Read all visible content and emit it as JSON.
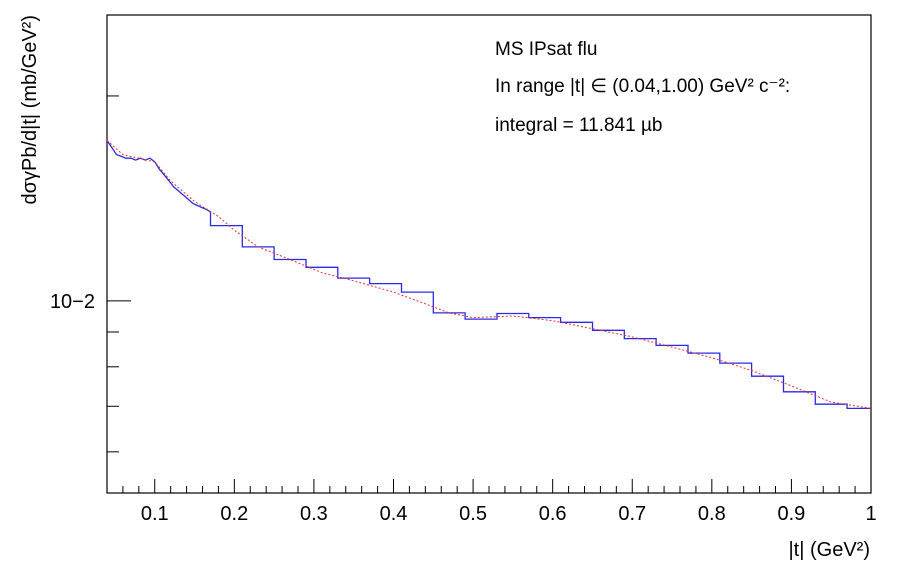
{
  "chart_data": {
    "type": "line",
    "title": "",
    "annotations": [
      "MS IPsat flu",
      "In range |t| ∈ (0.04,1.00) GeV² c⁻²:",
      "integral = 11.841 µb"
    ],
    "xlabel": "|t| (GeV²)",
    "ylabel": "dσγPb/d|t| (mb/GeV²)",
    "xlim": [
      0.04,
      1.0
    ],
    "ylim": [
      0.00522,
      0.0263
    ],
    "y_scale": "log",
    "x_tick_labels": [
      "0.1",
      "0.2",
      "0.3",
      "0.4",
      "0.5",
      "0.6",
      "0.7",
      "0.8",
      "0.9",
      "1"
    ],
    "y_tick_label": "10−2",
    "series": [
      {
        "style": "step-histogram",
        "color": "#2a2ae6",
        "fine_x": [
          0.04,
          0.046,
          0.052,
          0.058,
          0.064,
          0.07,
          0.076,
          0.082,
          0.088,
          0.094,
          0.1,
          0.106,
          0.112,
          0.118,
          0.124,
          0.13,
          0.136,
          0.142,
          0.148,
          0.154,
          0.16,
          0.166,
          0.17
        ],
        "fine_y": [
          0.0172,
          0.0168,
          0.0164,
          0.0163,
          0.0162,
          0.0162,
          0.0161,
          0.0162,
          0.0161,
          0.0162,
          0.016,
          0.0156,
          0.0153,
          0.015,
          0.0147,
          0.0145,
          0.0143,
          0.0141,
          0.0139,
          0.0138,
          0.0137,
          0.0136,
          0.0135
        ],
        "bin_edges": [
          0.17,
          0.21,
          0.25,
          0.29,
          0.33,
          0.37,
          0.41,
          0.45,
          0.49,
          0.53,
          0.57,
          0.61,
          0.65,
          0.69,
          0.73,
          0.77,
          0.81,
          0.85,
          0.89,
          0.93,
          0.97,
          1.0
        ],
        "bin_values": [
          0.0129,
          0.012,
          0.0115,
          0.0112,
          0.0108,
          0.0106,
          0.0103,
          0.0096,
          0.0094,
          0.00958,
          0.00945,
          0.0093,
          0.00905,
          0.0088,
          0.0086,
          0.00838,
          0.0081,
          0.00775,
          0.00735,
          0.00705,
          0.00695
        ]
      },
      {
        "style": "dotted-curve",
        "color": "#e8302a",
        "x": [
          0.04,
          0.06,
          0.08,
          0.1,
          0.12,
          0.15,
          0.18,
          0.2,
          0.23,
          0.27,
          0.31,
          0.35,
          0.4,
          0.44,
          0.47,
          0.5,
          0.55,
          0.6,
          0.65,
          0.7,
          0.75,
          0.8,
          0.85,
          0.9,
          0.95,
          1.0
        ],
        "y": [
          0.0172,
          0.0164,
          0.0162,
          0.016,
          0.015,
          0.014,
          0.0133,
          0.0127,
          0.012,
          0.0115,
          0.011,
          0.0107,
          0.0103,
          0.0099,
          0.0096,
          0.00945,
          0.0095,
          0.00935,
          0.0091,
          0.00885,
          0.00855,
          0.00825,
          0.0079,
          0.0075,
          0.0071,
          0.00695
        ]
      }
    ]
  }
}
